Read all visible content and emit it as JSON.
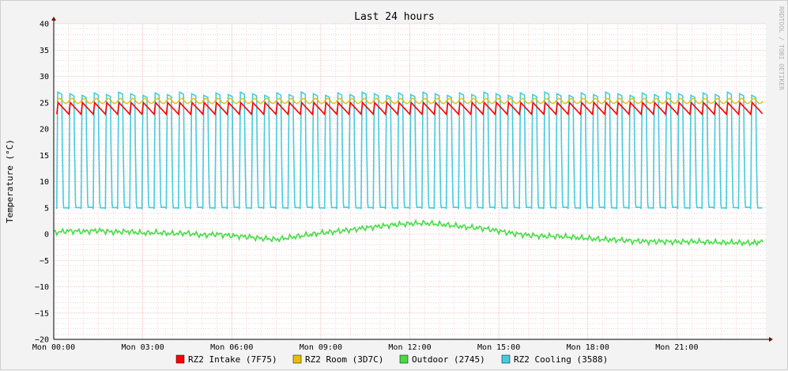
{
  "chart_data": {
    "type": "line",
    "title": "Last 24 hours",
    "ylabel": "Temperature (°C)",
    "watermark": "RRDTOOL / TOBI OETIKER",
    "ylim": [
      -20,
      40
    ],
    "yticks": [
      40,
      35,
      30,
      25,
      20,
      15,
      10,
      5,
      0,
      -5,
      -10,
      -15,
      -20
    ],
    "ytick_labels": [
      "40",
      "35",
      "30",
      "25",
      "20",
      "15",
      "10",
      "5",
      "0",
      "−5",
      "−10",
      "−15",
      "−20"
    ],
    "xlim": [
      0,
      24
    ],
    "xticks": [
      0,
      3,
      6,
      9,
      12,
      15,
      18,
      21
    ],
    "xtick_labels": [
      "Mon 00:00",
      "Mon 03:00",
      "Mon 06:00",
      "Mon 09:00",
      "Mon 12:00",
      "Mon 15:00",
      "Mon 18:00",
      "Mon 21:00"
    ],
    "grid": true,
    "legend_position": "bottom",
    "series": [
      {
        "name": "RZ2 Intake (7F75)",
        "color": "#ff0000",
        "cycles": 58,
        "range": [
          22.8,
          25.0
        ],
        "x": [
          0.1,
          23.9
        ]
      },
      {
        "name": "RZ2 Room (3D7C)",
        "color": "#e8c000",
        "range": [
          24.8,
          25.8
        ],
        "x": [
          0.1,
          23.9
        ]
      },
      {
        "name": "Outdoor (2745)",
        "color": "#44dd44",
        "x": [
          0,
          0.5,
          1,
          1.5,
          2,
          2.5,
          3,
          3.5,
          4,
          4.5,
          5,
          5.5,
          6,
          6.5,
          7,
          7.5,
          8,
          8.5,
          9,
          9.5,
          10,
          10.5,
          11,
          11.5,
          12,
          12.5,
          13,
          13.5,
          14,
          14.5,
          15,
          15.5,
          16,
          16.5,
          17,
          17.5,
          18,
          18.5,
          19,
          19.5,
          20,
          20.5,
          21,
          21.5,
          22,
          22.5,
          23,
          23.5,
          23.9
        ],
        "values": [
          0.3,
          0.6,
          0.5,
          0.7,
          0.4,
          0.5,
          0.2,
          0.3,
          0.1,
          0.2,
          -0.2,
          0.0,
          -0.3,
          -0.5,
          -0.8,
          -1.0,
          -0.6,
          -0.2,
          0.2,
          0.5,
          0.8,
          1.2,
          1.5,
          1.8,
          2.0,
          2.1,
          1.9,
          1.6,
          1.3,
          1.1,
          0.6,
          0.1,
          -0.2,
          -0.4,
          -0.4,
          -0.6,
          -0.8,
          -1.0,
          -1.1,
          -1.3,
          -1.4,
          -1.4,
          -1.5,
          -1.4,
          -1.5,
          -1.6,
          -1.6,
          -1.7,
          -1.5
        ]
      },
      {
        "name": "RZ2 Cooling (3588)",
        "color": "#44ccdd",
        "cycles": 58,
        "range": [
          4.8,
          27.0
        ],
        "x": [
          0.1,
          23.9
        ]
      }
    ]
  }
}
